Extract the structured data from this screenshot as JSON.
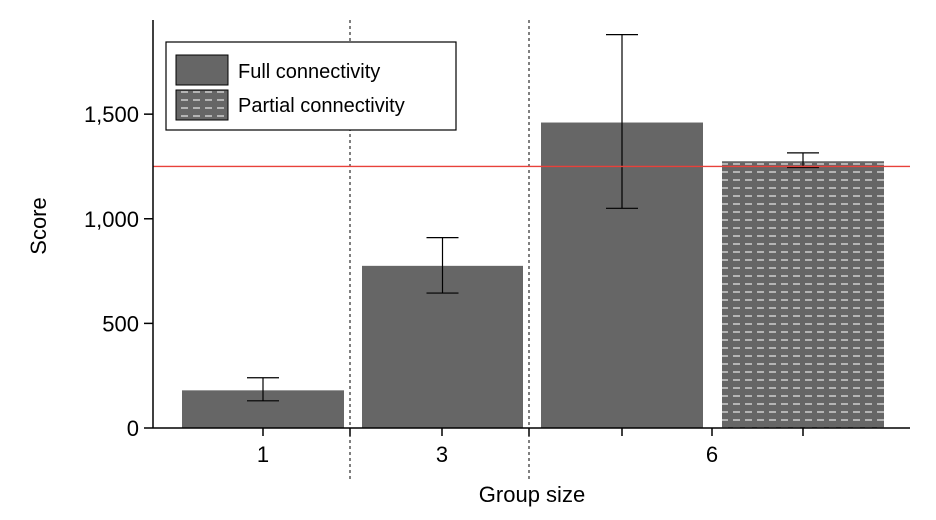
{
  "chart_data": {
    "type": "bar",
    "xlabel": "Group size",
    "ylabel": "Score",
    "ylim": [
      0,
      1950
    ],
    "yticks": [
      0,
      500,
      1000,
      1500
    ],
    "ytick_labels": [
      "0",
      "500",
      "1,000",
      "1,500"
    ],
    "groups": [
      "1",
      "3",
      "6"
    ],
    "series": [
      {
        "name": "Full connectivity",
        "pattern": "solid"
      },
      {
        "name": "Partial connectivity",
        "pattern": "dashed"
      }
    ],
    "bars": [
      {
        "group": "1",
        "series": "Full connectivity",
        "value": 180,
        "err_low": 130,
        "err_high": 240
      },
      {
        "group": "3",
        "series": "Full connectivity",
        "value": 775,
        "err_low": 645,
        "err_high": 910
      },
      {
        "group": "6",
        "series": "Full connectivity",
        "value": 1460,
        "err_low": 1050,
        "err_high": 1880
      },
      {
        "group": "6",
        "series": "Partial connectivity",
        "value": 1275,
        "err_low": 1245,
        "err_high": 1315
      }
    ],
    "reference_line": {
      "value": 1250,
      "color": "#e8413a"
    },
    "colors": {
      "bar": "#666666",
      "pattern_dash": "#bdbdbd"
    },
    "legend_position": "top-left"
  }
}
